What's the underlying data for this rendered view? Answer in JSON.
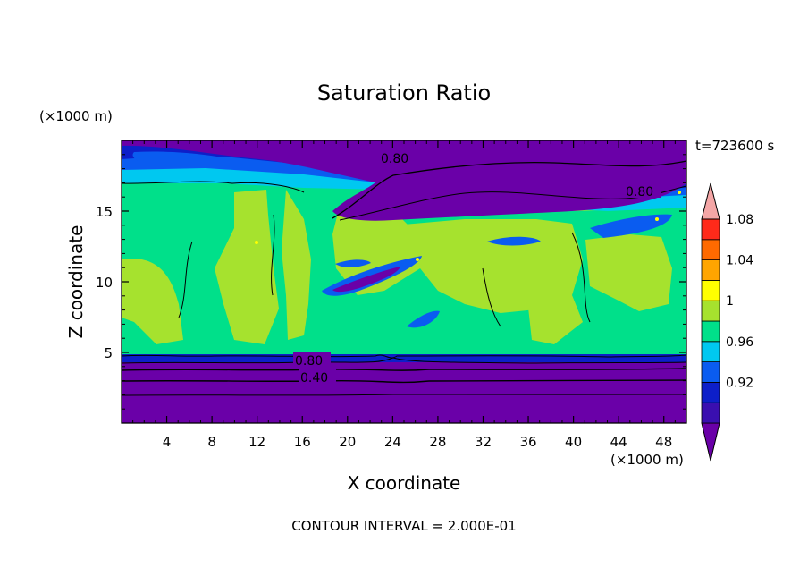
{
  "chart_data": {
    "type": "heatmap",
    "title": "Saturation Ratio",
    "xlabel": "X coordinate",
    "ylabel": "Z coordinate",
    "x_unit": "(×1000 m)",
    "y_unit": "(×1000 m)",
    "time_label": "t=723600 s",
    "footer": "CONTOUR INTERVAL = 2.000E-01",
    "xlim": [
      0,
      50
    ],
    "ylim": [
      0,
      20
    ],
    "x_ticks": [
      4,
      8,
      12,
      16,
      20,
      24,
      28,
      32,
      36,
      40,
      44,
      48
    ],
    "y_ticks": [
      5,
      10,
      15
    ],
    "colorbar": {
      "levels": [
        {
          "color": "#6a00a8"
        },
        {
          "color": "#3a0fb0"
        },
        {
          "color": "#0d1fc9",
          "label": "0.92"
        },
        {
          "color": "#0a5cf0"
        },
        {
          "color": "#00c8f0",
          "label": "0.96"
        },
        {
          "color": "#00e08a"
        },
        {
          "color": "#a6e22e",
          "label": "1"
        },
        {
          "color": "#ffff00"
        },
        {
          "color": "#ffa500",
          "label": "1.04"
        },
        {
          "color": "#ff6a00"
        },
        {
          "color": "#ff2a1a",
          "label": "1.08"
        },
        {
          "color": "#f4a6a6"
        }
      ]
    },
    "contours": [
      {
        "label": "0.80"
      },
      {
        "label": "0.40"
      },
      {
        "label": "0.80"
      },
      {
        "label": "0.80"
      }
    ]
  }
}
